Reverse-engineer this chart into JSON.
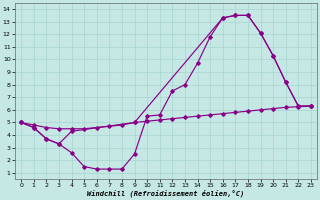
{
  "bg_color": "#c5e8e5",
  "line_color": "#880088",
  "xlim": [
    -0.5,
    23.5
  ],
  "ylim": [
    0.5,
    14.5
  ],
  "xticks": [
    0,
    1,
    2,
    3,
    4,
    5,
    6,
    7,
    8,
    9,
    10,
    11,
    12,
    13,
    14,
    15,
    16,
    17,
    18,
    19,
    20,
    21,
    22,
    23
  ],
  "yticks": [
    1,
    2,
    3,
    4,
    5,
    6,
    7,
    8,
    9,
    10,
    11,
    12,
    13,
    14
  ],
  "xlabel": "Windchill (Refroidissement éolien,°C)",
  "line1_x": [
    0,
    1,
    2,
    3,
    4,
    5,
    6,
    7,
    8,
    9,
    10,
    11,
    12,
    13,
    14,
    15,
    16,
    17,
    18,
    19,
    20,
    21,
    22,
    23
  ],
  "line1_y": [
    5.0,
    4.6,
    3.7,
    3.3,
    2.6,
    1.5,
    1.3,
    1.3,
    1.3,
    2.5,
    5.5,
    5.6,
    7.5,
    8.0,
    9.7,
    11.8,
    13.3,
    13.5,
    13.5,
    12.1,
    10.3,
    8.2,
    6.3,
    6.3
  ],
  "line2_x": [
    0,
    1,
    2,
    3,
    4,
    9,
    16,
    17,
    18,
    19,
    20,
    21,
    22,
    23
  ],
  "line2_y": [
    5.0,
    4.6,
    3.7,
    3.3,
    4.3,
    5.0,
    13.3,
    13.5,
    13.5,
    12.1,
    10.3,
    8.2,
    6.3,
    6.3
  ],
  "line3_x": [
    0,
    1,
    2,
    3,
    4,
    5,
    6,
    7,
    8,
    9,
    10,
    11,
    12,
    13,
    14,
    15,
    16,
    17,
    18,
    19,
    20,
    21,
    22,
    23
  ],
  "line3_y": [
    5.0,
    4.8,
    4.6,
    4.5,
    4.5,
    4.5,
    4.6,
    4.7,
    4.8,
    5.0,
    5.1,
    5.2,
    5.3,
    5.4,
    5.5,
    5.6,
    5.7,
    5.8,
    5.9,
    6.0,
    6.1,
    6.2,
    6.25,
    6.3
  ]
}
